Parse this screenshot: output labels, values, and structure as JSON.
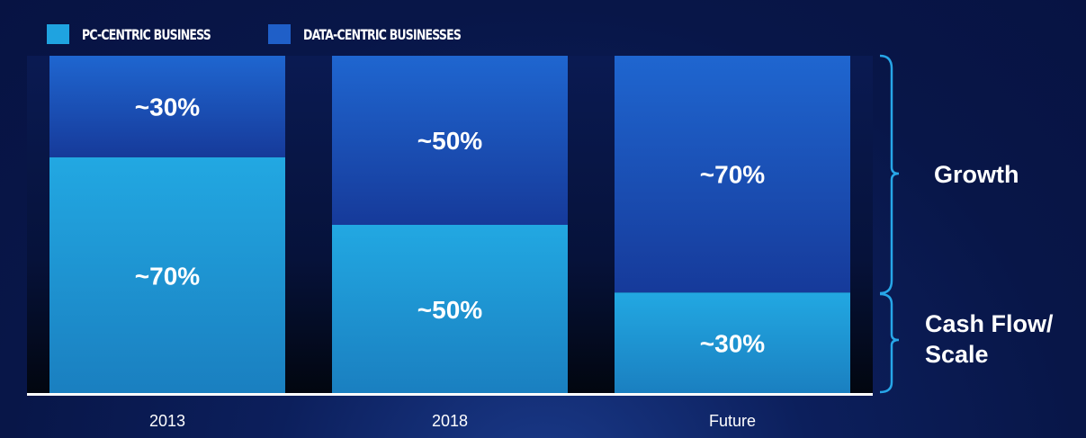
{
  "legend": [
    {
      "name": "PC-CENTRIC BUSINESS",
      "color": "#1fa3e0"
    },
    {
      "name": "DATA-CENTRIC BUSINESSES",
      "color": "#1f5fc8"
    }
  ],
  "annotations": {
    "growth": "Growth",
    "cash_flow_line1": "Cash Flow/",
    "cash_flow_line2": "Scale"
  },
  "chart_data": {
    "type": "bar",
    "stacked": true,
    "categories": [
      "2013",
      "2018",
      "Future"
    ],
    "series": [
      {
        "name": "PC-CENTRIC BUSINESS",
        "values": [
          70,
          50,
          30
        ],
        "labels": [
          "~70%",
          "~50%",
          "~30%"
        ],
        "color": "#1fa3e0"
      },
      {
        "name": "DATA-CENTRIC BUSINESSES",
        "values": [
          30,
          50,
          70
        ],
        "labels": [
          "~30%",
          "~50%",
          "~70%"
        ],
        "color": "#1f5fc8"
      }
    ],
    "ylim": [
      0,
      100
    ],
    "grid": false,
    "legend_position": "top-left"
  }
}
